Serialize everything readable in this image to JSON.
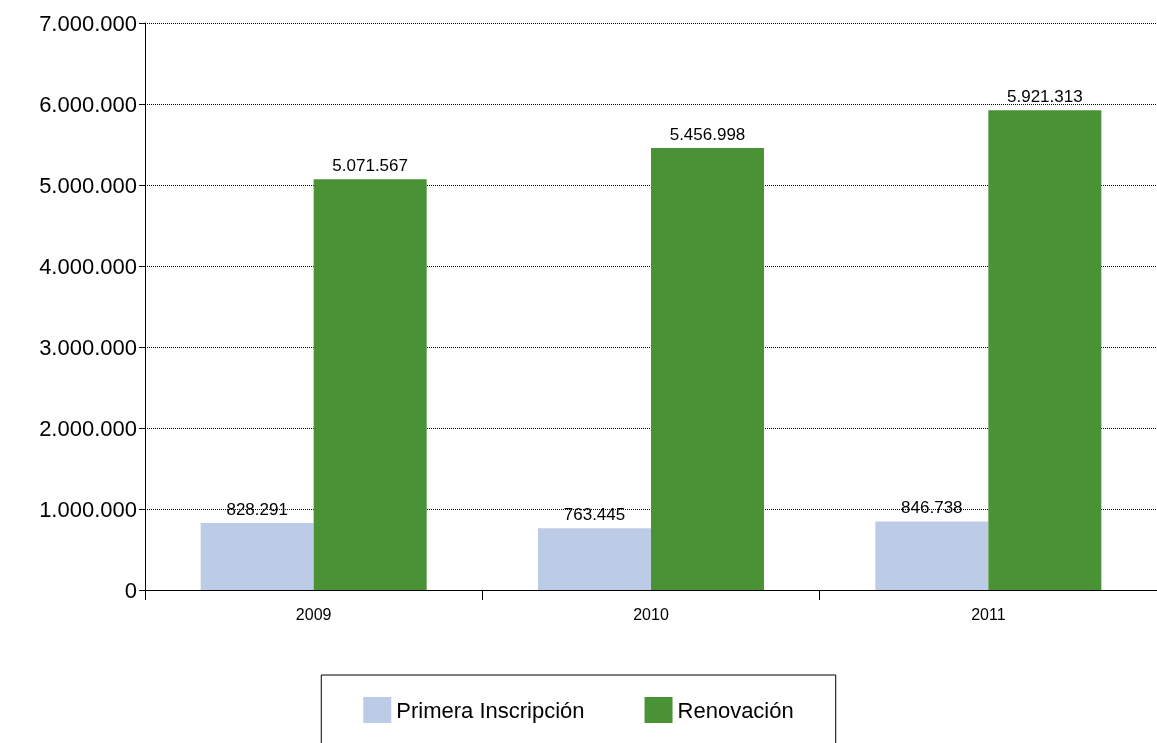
{
  "chart_data": {
    "type": "bar",
    "categories": [
      "2009",
      "2010",
      "2011"
    ],
    "series": [
      {
        "name": "Primera Inscripción",
        "color": "#bccbe6",
        "values": [
          828291,
          763445,
          846738
        ],
        "value_labels": [
          "828.291",
          "763.445",
          "846.738"
        ]
      },
      {
        "name": "Renovación",
        "color": "#4a9236",
        "values": [
          5071567,
          5456998,
          5921313
        ],
        "value_labels": [
          "5.071.567",
          "5.456.998",
          "5.921.313"
        ]
      }
    ],
    "ylim": [
      0,
      7000000
    ],
    "yticks": [
      {
        "value": 0,
        "label": "0"
      },
      {
        "value": 1000000,
        "label": "1.000.000"
      },
      {
        "value": 2000000,
        "label": "2.000.000"
      },
      {
        "value": 3000000,
        "label": "3.000.000"
      },
      {
        "value": 4000000,
        "label": "4.000.000"
      },
      {
        "value": 5000000,
        "label": "5.000.000"
      },
      {
        "value": 6000000,
        "label": "6.000.000"
      },
      {
        "value": 7000000,
        "label": "7.000.000"
      }
    ],
    "grid": "y",
    "legend": "bottom"
  }
}
